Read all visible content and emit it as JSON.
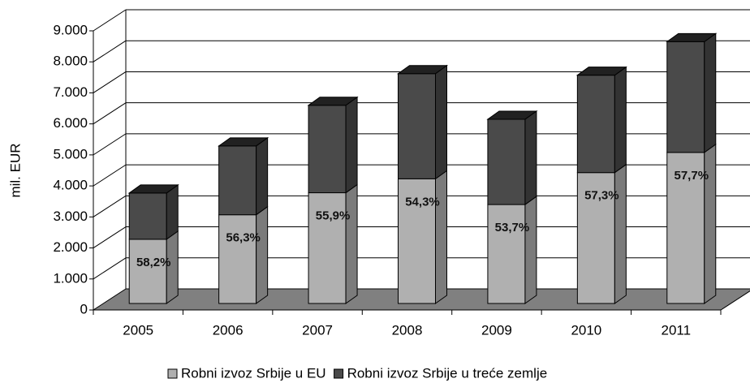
{
  "chart_data": {
    "type": "bar3d-stacked",
    "ylabel": "mil. EUR",
    "categories": [
      "2005",
      "2006",
      "2007",
      "2008",
      "2009",
      "2010",
      "2011"
    ],
    "series": [
      {
        "name": "Robni izvoz Srbije u EU",
        "color": "#b0b0b0",
        "values": [
          2070,
          2860,
          3570,
          4020,
          3190,
          4220,
          4870
        ]
      },
      {
        "name": "Robni izvoz Srbije u treće zemlje",
        "color": "#4a4a4a",
        "values": [
          1490,
          2220,
          2820,
          3390,
          2750,
          3140,
          3570
        ]
      }
    ],
    "annotations": [
      "58,2%",
      "56,3%",
      "55,9%",
      "54,3%",
      "53,7%",
      "57,3%",
      "57,7%"
    ],
    "ylim": [
      0,
      9000
    ],
    "yticks": [
      {
        "value": 0,
        "label": "0"
      },
      {
        "value": 1000,
        "label": "1.000"
      },
      {
        "value": 2000,
        "label": "2.000"
      },
      {
        "value": 3000,
        "label": "3.000"
      },
      {
        "value": 4000,
        "label": "4.000"
      },
      {
        "value": 5000,
        "label": "5.000"
      },
      {
        "value": 6000,
        "label": "6.000"
      },
      {
        "value": 7000,
        "label": "7.000"
      },
      {
        "value": 8000,
        "label": "8.000"
      },
      {
        "value": 9000,
        "label": "9.000"
      }
    ],
    "grid": true,
    "legend": "bottom"
  }
}
